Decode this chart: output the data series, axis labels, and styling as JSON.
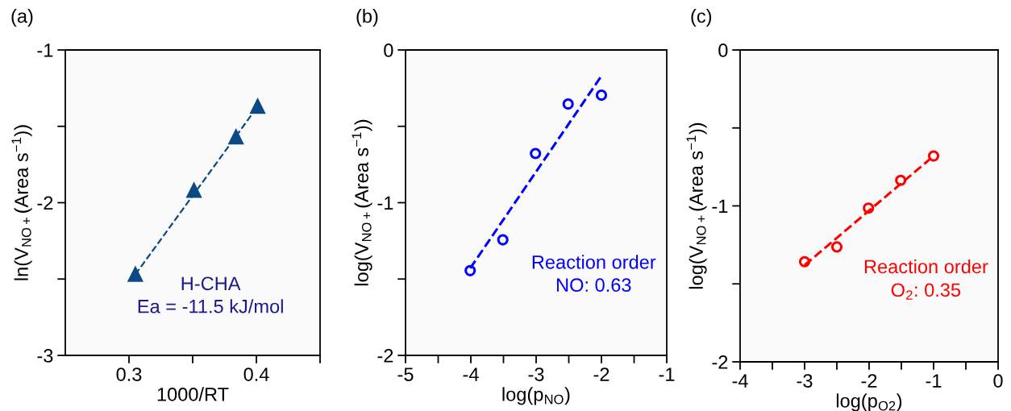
{
  "chart_data": [
    {
      "type": "scatter",
      "title": "(a)",
      "xlabel": "1000/RT",
      "ylabel": "ln(V$_{NO+}$(Area s$^{−1}$))",
      "xlim": [
        0.25,
        0.45
      ],
      "xticks": [
        0.3,
        {
          "value": 0.35,
          "label": null
        },
        0.4,
        {
          "value": 0.45,
          "label": null
        }
      ],
      "ylim": [
        -3,
        -1
      ],
      "yticks": [
        -3,
        {
          "value": -2.5,
          "label": null
        },
        -2,
        {
          "value": -1.5,
          "label": null
        },
        -1
      ],
      "series": [
        {
          "marker": "triangle",
          "color": "#0b4a84",
          "x": [
            0.305,
            0.351,
            0.384,
            0.401
          ],
          "values": [
            -2.47,
            -1.92,
            -1.57,
            -1.37
          ]
        },
        {
          "type": "line",
          "line_style": "dashed",
          "color": "#0b4a84",
          "x": [
            0.305,
            0.401
          ],
          "values": [
            -2.47,
            -1.37
          ]
        }
      ],
      "annotations": [
        "H-CHA",
        "Ea = -11.5 kJ/mol"
      ],
      "grid": false,
      "legend": false
    },
    {
      "type": "scatter",
      "title": "(b)",
      "xlabel": "log(p$_{NO}$)",
      "ylabel": "log(V$_{NO+}$(Area s$^{−1}$))",
      "xlim": [
        -5,
        -1
      ],
      "xticks": [
        -5,
        {
          "value": -4.5,
          "label": null
        },
        -4,
        {
          "value": -3.5,
          "label": null
        },
        -3,
        {
          "value": -2.5,
          "label": null
        },
        -2,
        {
          "value": -1.5,
          "label": null
        },
        -1
      ],
      "ylim": [
        -2,
        0
      ],
      "yticks": [
        -2,
        {
          "value": -1.5,
          "label": null
        },
        -1,
        {
          "value": -0.5,
          "label": null
        },
        0
      ],
      "series": [
        {
          "marker": "circle",
          "color": "#0000ff",
          "x": [
            -4.01,
            -3.51,
            -3.01,
            -2.51,
            -2.0
          ],
          "values": [
            -1.445,
            -1.243,
            -0.678,
            -0.354,
            -0.296
          ]
        },
        {
          "type": "line",
          "line_style": "dashed",
          "color": "#0000ff",
          "x": [
            -4.01,
            -2.0
          ],
          "values": [
            -1.43,
            -0.17
          ]
        }
      ],
      "annotations": [
        "Reaction order",
        "NO: 0.63"
      ],
      "grid": false,
      "legend": false
    },
    {
      "type": "scatter",
      "title": "(c)",
      "xlabel": "log(p$_{O2}$)",
      "ylabel": "log(V$_{NO+}$(Area s$^{−1}$))",
      "xlim": [
        -4,
        0
      ],
      "xticks": [
        -4,
        {
          "value": -3.5,
          "label": null
        },
        -3,
        {
          "value": -2.5,
          "label": null
        },
        -2,
        {
          "value": -1.5,
          "label": null
        },
        -1,
        {
          "value": -0.5,
          "label": null
        },
        0
      ],
      "ylim": [
        -2,
        0
      ],
      "yticks": [
        -2,
        {
          "value": -1.5,
          "label": null
        },
        -1,
        {
          "value": -0.5,
          "label": null
        },
        0
      ],
      "series": [
        {
          "marker": "circle",
          "color": "#ff0000",
          "x": [
            -3.0,
            -2.5,
            -2.01,
            -1.51,
            -1.0
          ],
          "values": [
            -1.358,
            -1.263,
            -1.014,
            -0.836,
            -0.68
          ]
        },
        {
          "type": "line",
          "line_style": "dashed",
          "color": "#ff0000",
          "x": [
            -3.0,
            -1.0
          ],
          "values": [
            -1.38,
            -0.68
          ]
        }
      ],
      "annotations": [
        "Reaction order",
        "O$_{2}$: 0.35"
      ],
      "grid": false,
      "legend": false
    }
  ]
}
